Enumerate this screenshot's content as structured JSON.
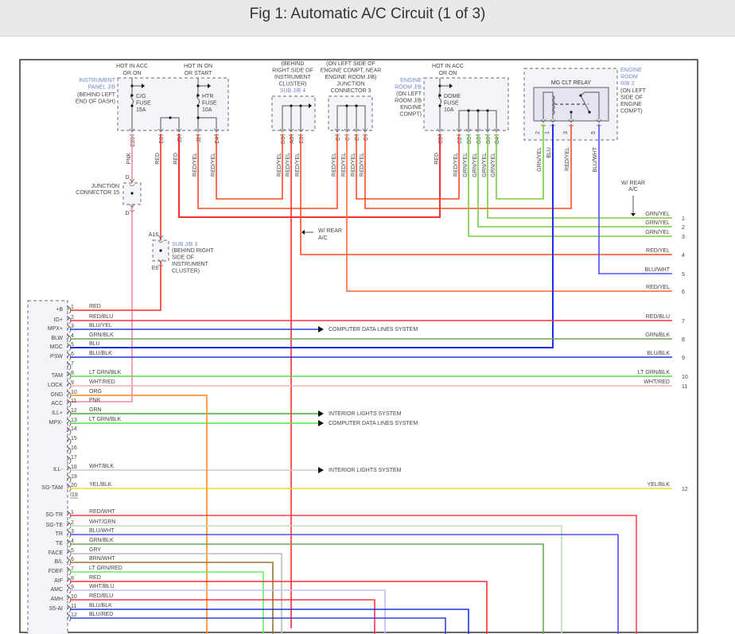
{
  "title": "Fig 1: Automatic A/C Circuit (1 of 3)",
  "wire_colors": {
    "RED": "#ff3030",
    "RED/YEL": "#ff4a22",
    "PNK": "#f08aa0",
    "GRN/YEL": "#7ccc3c",
    "BLU": "#1f2fee",
    "BLU/WHT": "#5050ff",
    "RED/BLU": "#ff3344",
    "BLU/YEL": "#2040dd",
    "GRN/BLK": "#66aa55",
    "BLU/BLK": "#2233dd",
    "LT GRN/BLK": "#50dd50",
    "WHT/RED": "#f4b0b0",
    "ORG": "#ff9933",
    "GRN": "#44aa33",
    "WHT/BLK": "#cccccc",
    "YEL/BLK": "#eedd22",
    "RED/WHT": "#ff4444",
    "WHT/GRN": "#bbddbb",
    "GRY": "#bbbbbb",
    "BRN/WHT": "#997733",
    "LT GRN/RED": "#66ee66",
    "WHT/BLU": "#c0c0ff",
    "BLU/RED": "#3344dd",
    "SALMON": "#ff7755"
  },
  "top": {
    "ip_jb": {
      "hot_acc": [
        "HOT IN ACC",
        "OR ON"
      ],
      "hot_on": [
        "HOT IN ON",
        "OR START"
      ],
      "name": [
        "INSTRUMENT",
        "PANEL J/B"
      ],
      "loc": [
        "(BEHIND LEFT",
        "END OF DASH)"
      ],
      "fuse1": [
        "C/G",
        "FUSE",
        "15A"
      ],
      "fuse2": [
        "HTR",
        "FUSE",
        "10A"
      ],
      "pins": [
        "E20",
        "E8",
        "J5",
        "J2",
        "E4"
      ],
      "wires": [
        "PNK",
        "RED",
        "RED",
        "RED/YEL",
        "RED/YEL"
      ]
    },
    "sub_jb4": {
      "loc": [
        "(BEHIND",
        "RIGHT SIDE OF",
        "INSTRUMENT",
        "CLUSTER)"
      ],
      "name": "SUB J/B 4",
      "pins": [
        "D3",
        "A3",
        "E3"
      ],
      "wires": [
        "RED/YEL",
        "RED/YEL",
        "RED/YEL"
      ]
    },
    "jc3": {
      "loc": [
        "(ON LEFT SIDE OF",
        "ENGINE COMPT, NEAR",
        "ENGINE ROOM J/B)",
        "JUNCTION",
        "CONNECTOR 3"
      ],
      "pins": [
        "C",
        "C",
        "C",
        "C"
      ],
      "wires": [
        "RED/YEL",
        "RED/YEL",
        "RED/YEL",
        "RED/YEL"
      ]
    },
    "er_jb": {
      "hot": [
        "HOT IN ACC",
        "OR ON"
      ],
      "name": [
        "ENGINE",
        "ROOM J/B"
      ],
      "loc": [
        "(ON LEFT",
        "ROOM J/B",
        "ENGINE",
        "COMPT)"
      ],
      "fuse": [
        "DOME",
        "FUSE",
        "10A"
      ],
      "pins": [
        "C3",
        "C2",
        "G5",
        "G3",
        "G6",
        "G4"
      ],
      "wires": [
        "RED",
        "RED/YEL",
        "GRN/YEL",
        "GRN/YEL",
        "GRN/YEL",
        "GRN/YEL"
      ]
    },
    "relay": {
      "title": "MG CLT RELAY",
      "name": [
        "ENGINE",
        "ROOM",
        "R/B 2"
      ],
      "loc": [
        "(ON LEFT",
        "SIDE OF",
        "ENGINE",
        "COMPT)"
      ],
      "pins": [
        "2",
        "1",
        "3",
        "5"
      ],
      "wires": [
        "GRN/YEL",
        "BLU",
        "RED/YEL",
        "BLU/WHT"
      ]
    },
    "jc15": {
      "name": [
        "JUNCTION",
        "CONNECTOR 15"
      ],
      "pin_top": "D",
      "pin_bottom": "D"
    },
    "sub_jb3": {
      "pin_top": "A16",
      "pin_bottom": "E6",
      "name": "SUB J/B 3",
      "loc": [
        "(BEHIND RIGHT",
        "SIDE OF",
        "INSTRUMENT",
        "CLUSTER)"
      ]
    },
    "rear_ac_1": [
      "W/ REAR",
      "A/C"
    ],
    "rear_ac_2": [
      "W/ REAR",
      "A/C"
    ]
  },
  "connector_a": {
    "id": "I19",
    "pins": [
      {
        "pin": "1",
        "term": "+B",
        "wire": "RED"
      },
      {
        "pin": "2",
        "term": "IG+",
        "wire": "RED/BLU"
      },
      {
        "pin": "3",
        "term": "MPX+",
        "wire": "BLU/YEL"
      },
      {
        "pin": "4",
        "term": "BLW",
        "wire": "GRN/BLK"
      },
      {
        "pin": "5",
        "term": "MGC",
        "wire": "BLU"
      },
      {
        "pin": "6",
        "term": "PSW",
        "wire": "BLU/BLK"
      },
      {
        "pin": "7",
        "term": "",
        "wire": ""
      },
      {
        "pin": "8",
        "term": "TAM",
        "wire": "LT GRN/BLK"
      },
      {
        "pin": "9",
        "term": "LOCK",
        "wire": "WHT/RED"
      },
      {
        "pin": "10",
        "term": "GND",
        "wire": "ORG"
      },
      {
        "pin": "11",
        "term": "ACC",
        "wire": "PNK"
      },
      {
        "pin": "12",
        "term": "ILL+",
        "wire": "GRN"
      },
      {
        "pin": "13",
        "term": "MPX-",
        "wire": "LT GRN/BLK"
      },
      {
        "pin": "14",
        "term": "",
        "wire": ""
      },
      {
        "pin": "15",
        "term": "",
        "wire": ""
      },
      {
        "pin": "16",
        "term": "",
        "wire": ""
      },
      {
        "pin": "17",
        "term": "",
        "wire": ""
      },
      {
        "pin": "18",
        "term": "ILL-",
        "wire": "WHT/BLK"
      },
      {
        "pin": "19",
        "term": "",
        "wire": ""
      },
      {
        "pin": "20",
        "term": "SG-TAM",
        "wire": "YEL/BLK"
      }
    ]
  },
  "connector_b": {
    "pins": [
      {
        "pin": "1",
        "term": "SG-TR",
        "wire": "RED/WHT"
      },
      {
        "pin": "2",
        "term": "SG-TE",
        "wire": "WHT/GRN"
      },
      {
        "pin": "3",
        "term": "TR",
        "wire": "BLU/WHT"
      },
      {
        "pin": "4",
        "term": "TE",
        "wire": "GRN/BLK"
      },
      {
        "pin": "5",
        "term": "FACE",
        "wire": "GRY"
      },
      {
        "pin": "6",
        "term": "B/L",
        "wire": "BRN/WHT"
      },
      {
        "pin": "7",
        "term": "FDEF",
        "wire": "LT GRN/RED"
      },
      {
        "pin": "8",
        "term": "AIF",
        "wire": "RED"
      },
      {
        "pin": "9",
        "term": "AMC",
        "wire": "WHT/BLU"
      },
      {
        "pin": "10",
        "term": "AMH",
        "wire": "RED/BLU"
      },
      {
        "pin": "11",
        "term": "S5-AI",
        "wire": "BLU/BLK"
      },
      {
        "pin": "12",
        "term": "",
        "wire": "BLU/RED"
      }
    ]
  },
  "right_ends": [
    {
      "label": "GRN/YEL",
      "num": "1"
    },
    {
      "label": "GRN/YEL",
      "num": "2"
    },
    {
      "label": "GRN/YEL",
      "num": "3"
    },
    {
      "label": "RED/YEL",
      "num": "4"
    },
    {
      "label": "BLU/WHT",
      "num": "5"
    },
    {
      "label": "RED/YEL",
      "num": "6"
    },
    {
      "label": "RED/BLU",
      "num": "7"
    },
    {
      "label": "GRN/BLK",
      "num": "8"
    },
    {
      "label": "BLU/BLK",
      "num": "9"
    },
    {
      "label": "LT GRN/BLK",
      "num": "10"
    },
    {
      "label": "WHT/RED",
      "num": "11"
    },
    {
      "label": "YEL/BLK",
      "num": "12"
    }
  ],
  "arrows": [
    "COMPUTER DATA LINES SYSTEM",
    "INTERIOR LIGHTS SYSTEM",
    "COMPUTER DATA LINES SYSTEM",
    "INTERIOR LIGHTS SYSTEM"
  ]
}
